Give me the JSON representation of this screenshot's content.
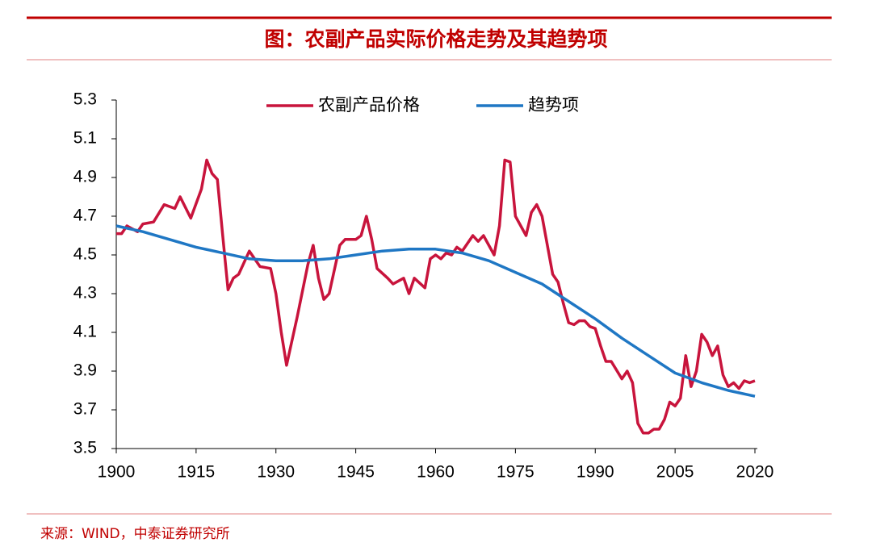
{
  "chart_data": {
    "type": "line",
    "title": "图：农副产品实际价格走势及其趋势项",
    "source": "来源：WIND，中泰证券研究所",
    "xlim": [
      1900,
      2020
    ],
    "xticks": [
      1900,
      1915,
      1930,
      1945,
      1960,
      1975,
      1990,
      2005,
      2020
    ],
    "ylim": [
      3.5,
      5.3
    ],
    "yticks": [
      3.5,
      3.7,
      3.9,
      4.1,
      4.3,
      4.5,
      4.7,
      4.9,
      5.1,
      5.3
    ],
    "legend": "top",
    "series": [
      {
        "name": "农副产品价格",
        "color": "#c8143c",
        "x": [
          1900,
          1901,
          1902,
          1904,
          1905,
          1907,
          1909,
          1911,
          1912,
          1914,
          1916,
          1917,
          1918,
          1919,
          1920,
          1921,
          1922,
          1923,
          1925,
          1927,
          1929,
          1930,
          1931,
          1932,
          1934,
          1936,
          1937,
          1938,
          1939,
          1940,
          1942,
          1943,
          1945,
          1946,
          1947,
          1948,
          1949,
          1951,
          1952,
          1954,
          1955,
          1956,
          1958,
          1959,
          1960,
          1961,
          1962,
          1963,
          1964,
          1965,
          1967,
          1968,
          1969,
          1970,
          1971,
          1972,
          1973,
          1974,
          1975,
          1977,
          1978,
          1979,
          1980,
          1982,
          1983,
          1984,
          1985,
          1986,
          1987,
          1988,
          1989,
          1990,
          1991,
          1992,
          1993,
          1995,
          1996,
          1997,
          1998,
          1999,
          2000,
          2001,
          2002,
          2003,
          2004,
          2005,
          2006,
          2007,
          2008,
          2009,
          2010,
          2011,
          2012,
          2013,
          2014,
          2015,
          2016,
          2017,
          2018,
          2019,
          2020
        ],
        "values": [
          4.61,
          4.61,
          4.65,
          4.62,
          4.66,
          4.67,
          4.76,
          4.74,
          4.8,
          4.69,
          4.84,
          4.99,
          4.92,
          4.89,
          4.6,
          4.32,
          4.38,
          4.4,
          4.52,
          4.44,
          4.43,
          4.3,
          4.1,
          3.93,
          4.18,
          4.45,
          4.55,
          4.38,
          4.27,
          4.3,
          4.55,
          4.58,
          4.58,
          4.6,
          4.7,
          4.58,
          4.43,
          4.38,
          4.35,
          4.38,
          4.3,
          4.38,
          4.33,
          4.48,
          4.5,
          4.48,
          4.51,
          4.5,
          4.54,
          4.52,
          4.6,
          4.57,
          4.6,
          4.55,
          4.5,
          4.65,
          4.99,
          4.98,
          4.7,
          4.6,
          4.72,
          4.76,
          4.7,
          4.4,
          4.36,
          4.25,
          4.15,
          4.14,
          4.16,
          4.16,
          4.13,
          4.12,
          4.03,
          3.95,
          3.95,
          3.86,
          3.9,
          3.84,
          3.63,
          3.58,
          3.58,
          3.6,
          3.6,
          3.65,
          3.74,
          3.72,
          3.76,
          3.98,
          3.82,
          3.9,
          4.09,
          4.05,
          3.98,
          4.03,
          3.88,
          3.82,
          3.84,
          3.81,
          3.85,
          3.84,
          3.85
        ]
      },
      {
        "name": "趋势项",
        "color": "#1f77c4",
        "x": [
          1900,
          1905,
          1910,
          1915,
          1920,
          1925,
          1930,
          1935,
          1940,
          1945,
          1950,
          1955,
          1960,
          1965,
          1970,
          1975,
          1980,
          1985,
          1990,
          1995,
          2000,
          2005,
          2010,
          2015,
          2020
        ],
        "values": [
          4.65,
          4.62,
          4.58,
          4.54,
          4.51,
          4.48,
          4.47,
          4.47,
          4.48,
          4.5,
          4.52,
          4.53,
          4.53,
          4.51,
          4.47,
          4.41,
          4.35,
          4.26,
          4.17,
          4.07,
          3.98,
          3.89,
          3.84,
          3.8,
          3.77
        ]
      }
    ]
  }
}
